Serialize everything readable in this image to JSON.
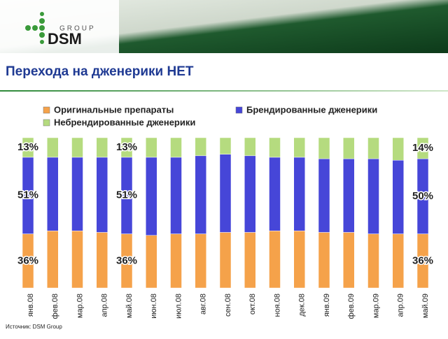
{
  "header": {
    "logo_group": "GROUP",
    "logo_name": "DSM",
    "title": "Перехода на дженерики НЕТ"
  },
  "chart_data": {
    "type": "stacked-bar",
    "categories": [
      "янв.08",
      "фев.08",
      "мар.08",
      "апр.08",
      "май.08",
      "июн.08",
      "июл.08",
      "авг.08",
      "сен.08",
      "окт.08",
      "ноя.08",
      "дек.08",
      "янв.09",
      "фев.09",
      "мар.09",
      "апр.09",
      "май.09"
    ],
    "ylim": [
      0,
      100
    ],
    "series": [
      {
        "name": "Оригинальные препараты",
        "color": "#f5a24a",
        "values": [
          36,
          38,
          38,
          37,
          36,
          35,
          36,
          36,
          37,
          37,
          38,
          38,
          37,
          37,
          36,
          36,
          36
        ],
        "value_labels": [
          "36%",
          null,
          null,
          null,
          "36%",
          null,
          null,
          null,
          null,
          null,
          null,
          null,
          null,
          null,
          null,
          null,
          "36%"
        ]
      },
      {
        "name": "Брендированные дженерики",
        "color": "#4646d8",
        "values": [
          51,
          49,
          49,
          50,
          51,
          52,
          51,
          52,
          52,
          51,
          49,
          49,
          49,
          49,
          50,
          49,
          50
        ],
        "value_labels": [
          "51%",
          null,
          null,
          null,
          "51%",
          null,
          null,
          null,
          null,
          null,
          null,
          null,
          null,
          null,
          null,
          null,
          "50%"
        ]
      },
      {
        "name": "Небрендированные дженерики",
        "color": "#b5db7f",
        "values": [
          13,
          13,
          13,
          13,
          13,
          13,
          13,
          12,
          11,
          12,
          13,
          13,
          14,
          14,
          14,
          15,
          14
        ],
        "value_labels": [
          "13%",
          null,
          null,
          null,
          "13%",
          null,
          null,
          null,
          null,
          null,
          null,
          null,
          null,
          null,
          null,
          null,
          "14%"
        ]
      }
    ]
  },
  "footer": {
    "source": "Источник: DSM Group"
  }
}
